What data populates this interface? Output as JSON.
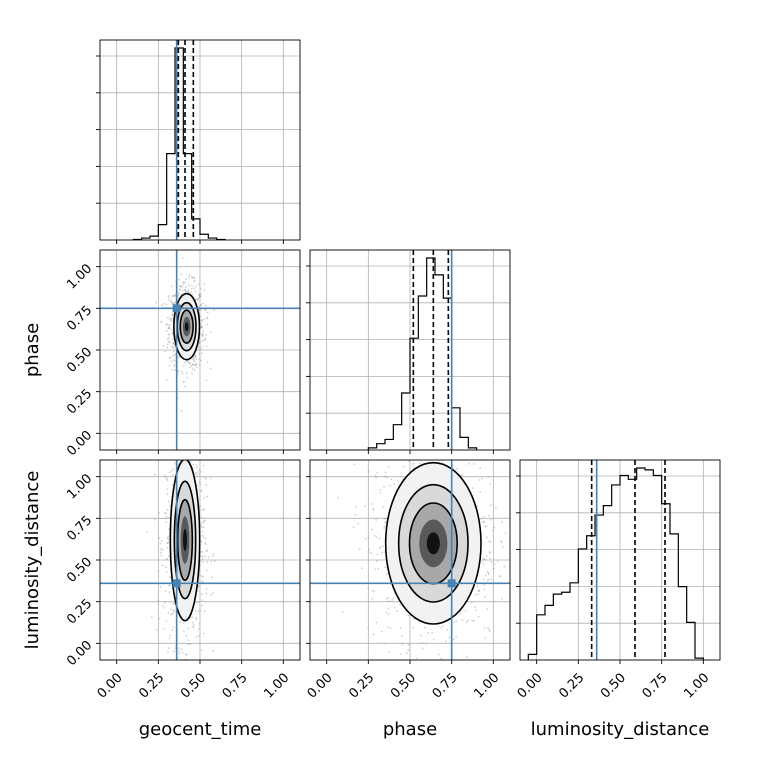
{
  "chart_data": {
    "type": "corner",
    "parameters": [
      "geocent_time",
      "phase",
      "luminosity_distance"
    ],
    "axis_range": [
      -0.1,
      1.1
    ],
    "ticks": [
      0.0,
      0.25,
      0.5,
      0.75,
      1.0
    ],
    "tick_labels": [
      "0.00",
      "0.25",
      "0.50",
      "0.75",
      "1.00"
    ],
    "grid": true,
    "colors": {
      "truth": "#4682b4",
      "hist": "#000000",
      "samples": "#9a9a9a"
    },
    "injection": {
      "geocent_time": 0.36,
      "phase": 0.75,
      "luminosity_distance": 0.36
    },
    "quantiles": {
      "geocent_time": [
        0.37,
        0.41,
        0.46
      ],
      "phase": [
        0.52,
        0.64,
        0.73
      ],
      "luminosity_distance": [
        0.33,
        0.59,
        0.77
      ]
    },
    "histograms": {
      "geocent_time": {
        "edges": [
          0.1,
          0.15,
          0.2,
          0.25,
          0.3,
          0.35,
          0.4,
          0.45,
          0.5,
          0.55,
          0.6,
          0.65
        ],
        "counts": [
          0.3,
          1,
          2,
          8,
          45,
          100,
          45,
          11,
          3,
          1,
          0.3
        ]
      },
      "phase": {
        "edges": [
          0.25,
          0.3,
          0.35,
          0.4,
          0.45,
          0.5,
          0.55,
          0.6,
          0.65,
          0.7,
          0.75,
          0.8,
          0.85,
          0.9
        ],
        "counts": [
          1,
          3,
          5,
          12,
          27,
          53,
          73,
          91,
          83,
          72,
          20,
          6,
          1
        ]
      },
      "luminosity_distance": {
        "edges": [
          -0.05,
          0.0,
          0.05,
          0.1,
          0.15,
          0.2,
          0.25,
          0.3,
          0.35,
          0.4,
          0.45,
          0.5,
          0.55,
          0.6,
          0.65,
          0.7,
          0.75,
          0.8,
          0.85,
          0.9,
          0.95,
          1.0
        ],
        "counts": [
          3,
          24,
          29,
          35,
          36,
          41,
          59,
          66,
          77,
          82,
          93,
          98,
          96,
          102,
          101,
          98,
          83,
          67,
          39,
          20,
          1
        ]
      }
    },
    "joint_summaries": [
      {
        "x": "geocent_time",
        "y": "phase",
        "center": [
          0.42,
          0.64
        ],
        "sd": [
          0.035,
          0.09
        ]
      },
      {
        "x": "geocent_time",
        "y": "luminosity_distance",
        "center": [
          0.41,
          0.62
        ],
        "sd": [
          0.04,
          0.22
        ]
      },
      {
        "x": "phase",
        "y": "luminosity_distance",
        "center": [
          0.64,
          0.6
        ],
        "sd": [
          0.13,
          0.22
        ]
      }
    ]
  }
}
